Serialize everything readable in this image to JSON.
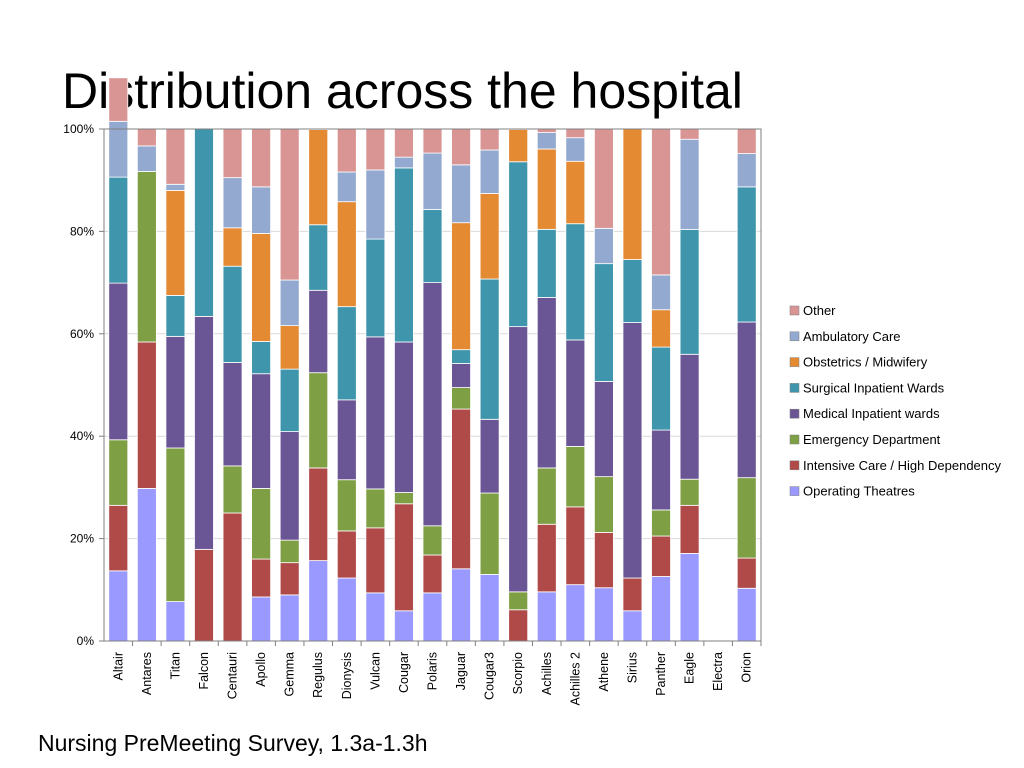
{
  "slide": {
    "title": "Distribution across the hospital",
    "footer": "Nursing PreMeeting Survey, 1.3a-1.3h"
  },
  "chart_data": {
    "type": "bar",
    "stacked": "percent",
    "title": "",
    "xlabel": "",
    "ylabel": "",
    "ylim": [
      0,
      100
    ],
    "yticks": [
      "0%",
      "20%",
      "40%",
      "60%",
      "80%",
      "100%"
    ],
    "grid": "horizontal",
    "legend": "right",
    "categories": [
      "Altair",
      "Antares",
      "Titan",
      "Falcon",
      "Centauri",
      "Apollo",
      "Gemma",
      "Regulus",
      "Dionysis",
      "Vulcan",
      "Cougar",
      "Polaris",
      "Jaguar",
      "Cougar3",
      "Scorpio",
      "Achilles",
      "Achilles 2",
      "Athene",
      "Sirius",
      "Panther",
      "Eagle",
      "Electra",
      "Orion"
    ],
    "series": [
      {
        "name": "Operating Theatres",
        "color": "#9999ff",
        "values": [
          13.7,
          29.8,
          7.7,
          0,
          0,
          8.6,
          9.0,
          15.7,
          12.3,
          9.4,
          5.9,
          9.4,
          14.1,
          13.0,
          0,
          9.6,
          11.0,
          10.4,
          5.9,
          12.6,
          17.1,
          0,
          10.3
        ]
      },
      {
        "name": "Intensive Care / High Dependency",
        "color": "#b04a48",
        "values": [
          12.8,
          28.6,
          0,
          17.9,
          25.0,
          7.4,
          6.3,
          18.1,
          9.2,
          12.7,
          20.9,
          7.4,
          31.2,
          0,
          6.1,
          13.2,
          15.2,
          10.8,
          6.4,
          7.9,
          9.4,
          0,
          5.9
        ]
      },
      {
        "name": "Emergency Department",
        "color": "#7f9f45",
        "values": [
          12.8,
          33.3,
          30.0,
          0,
          9.2,
          13.8,
          4.4,
          18.6,
          10.0,
          7.6,
          2.2,
          5.7,
          4.2,
          15.9,
          3.5,
          11.0,
          11.8,
          10.9,
          0,
          5.1,
          5.1,
          0,
          15.7
        ]
      },
      {
        "name": "Medical Inpatient wards",
        "color": "#6a5595",
        "values": [
          30.6,
          0,
          21.8,
          45.5,
          20.2,
          22.4,
          21.2,
          16.1,
          15.6,
          29.7,
          29.4,
          47.5,
          4.7,
          14.4,
          51.8,
          33.3,
          20.8,
          18.6,
          49.9,
          15.6,
          24.4,
          0,
          30.4
        ]
      },
      {
        "name": "Surgical Inpatient Wards",
        "color": "#3f96ac",
        "values": [
          20.7,
          0,
          8.0,
          36.6,
          18.8,
          6.3,
          12.2,
          12.8,
          18.2,
          19.1,
          34.0,
          14.3,
          2.7,
          27.4,
          32.2,
          13.3,
          22.7,
          23.0,
          12.3,
          16.2,
          24.4,
          0,
          26.4
        ]
      },
      {
        "name": "Obstetrics / Midwifery",
        "color": "#e38a33",
        "values": [
          0,
          0,
          20.5,
          0,
          7.5,
          21.1,
          8.5,
          18.6,
          20.5,
          0,
          0,
          0,
          24.8,
          16.7,
          6.3,
          15.7,
          12.2,
          0,
          25.5,
          7.3,
          0,
          0,
          0
        ]
      },
      {
        "name": "Ambulatory Care",
        "color": "#93a9d0",
        "values": [
          10.9,
          5.0,
          1.2,
          0,
          9.8,
          9.1,
          8.9,
          0,
          5.8,
          13.5,
          2.1,
          11.0,
          11.3,
          8.5,
          0,
          3.2,
          4.6,
          6.9,
          0,
          6.8,
          17.6,
          0,
          6.5
        ]
      },
      {
        "name": "Other",
        "color": "#d99594",
        "values": [
          8.5,
          3.3,
          10.8,
          0,
          9.5,
          11.3,
          29.5,
          0.1,
          8.4,
          8.0,
          5.5,
          4.7,
          7.0,
          4.1,
          0,
          0.7,
          1.7,
          19.4,
          0,
          28.5,
          2.0,
          0,
          4.8
        ]
      }
    ]
  }
}
